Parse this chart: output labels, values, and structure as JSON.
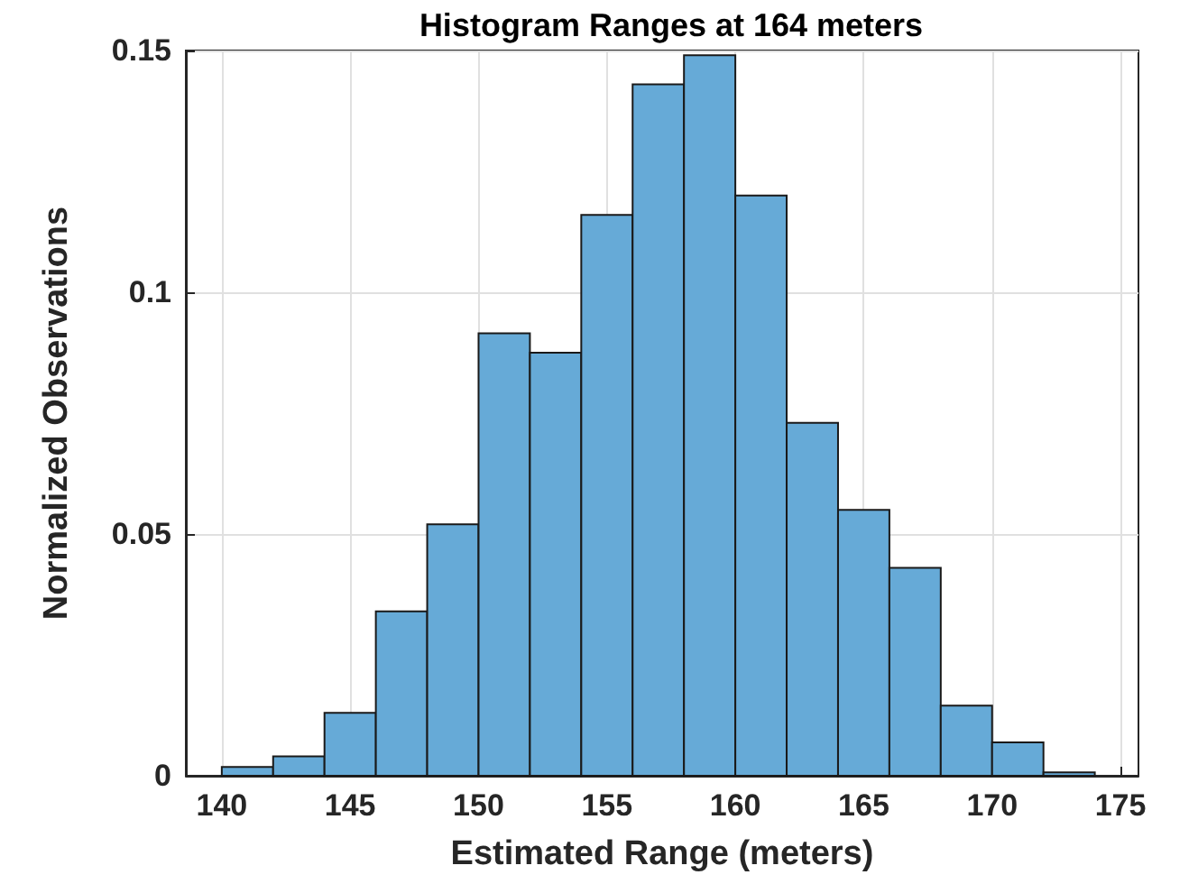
{
  "chart_data": {
    "type": "histogram",
    "title": "Histogram Ranges at 164 meters",
    "xlabel": "Estimated Range (meters)",
    "ylabel": "Normalized Observations",
    "bins": [
      140,
      142,
      144,
      146,
      148,
      150,
      152,
      154,
      156,
      158,
      160,
      162,
      164,
      166,
      168,
      170,
      172,
      174
    ],
    "values": [
      0.0018,
      0.004,
      0.013,
      0.034,
      0.052,
      0.0915,
      0.0875,
      0.116,
      0.143,
      0.149,
      0.12,
      0.073,
      0.055,
      0.043,
      0.0145,
      0.0069,
      0.0007
    ],
    "color": "#66aad7",
    "xlim": [
      138.6,
      175.7
    ],
    "xticks": [
      140,
      145,
      150,
      155,
      160,
      165,
      170,
      175
    ],
    "ylim": [
      0,
      0.15
    ],
    "yticks": [
      0,
      0.05,
      0.1,
      0.15
    ],
    "grid": true
  }
}
